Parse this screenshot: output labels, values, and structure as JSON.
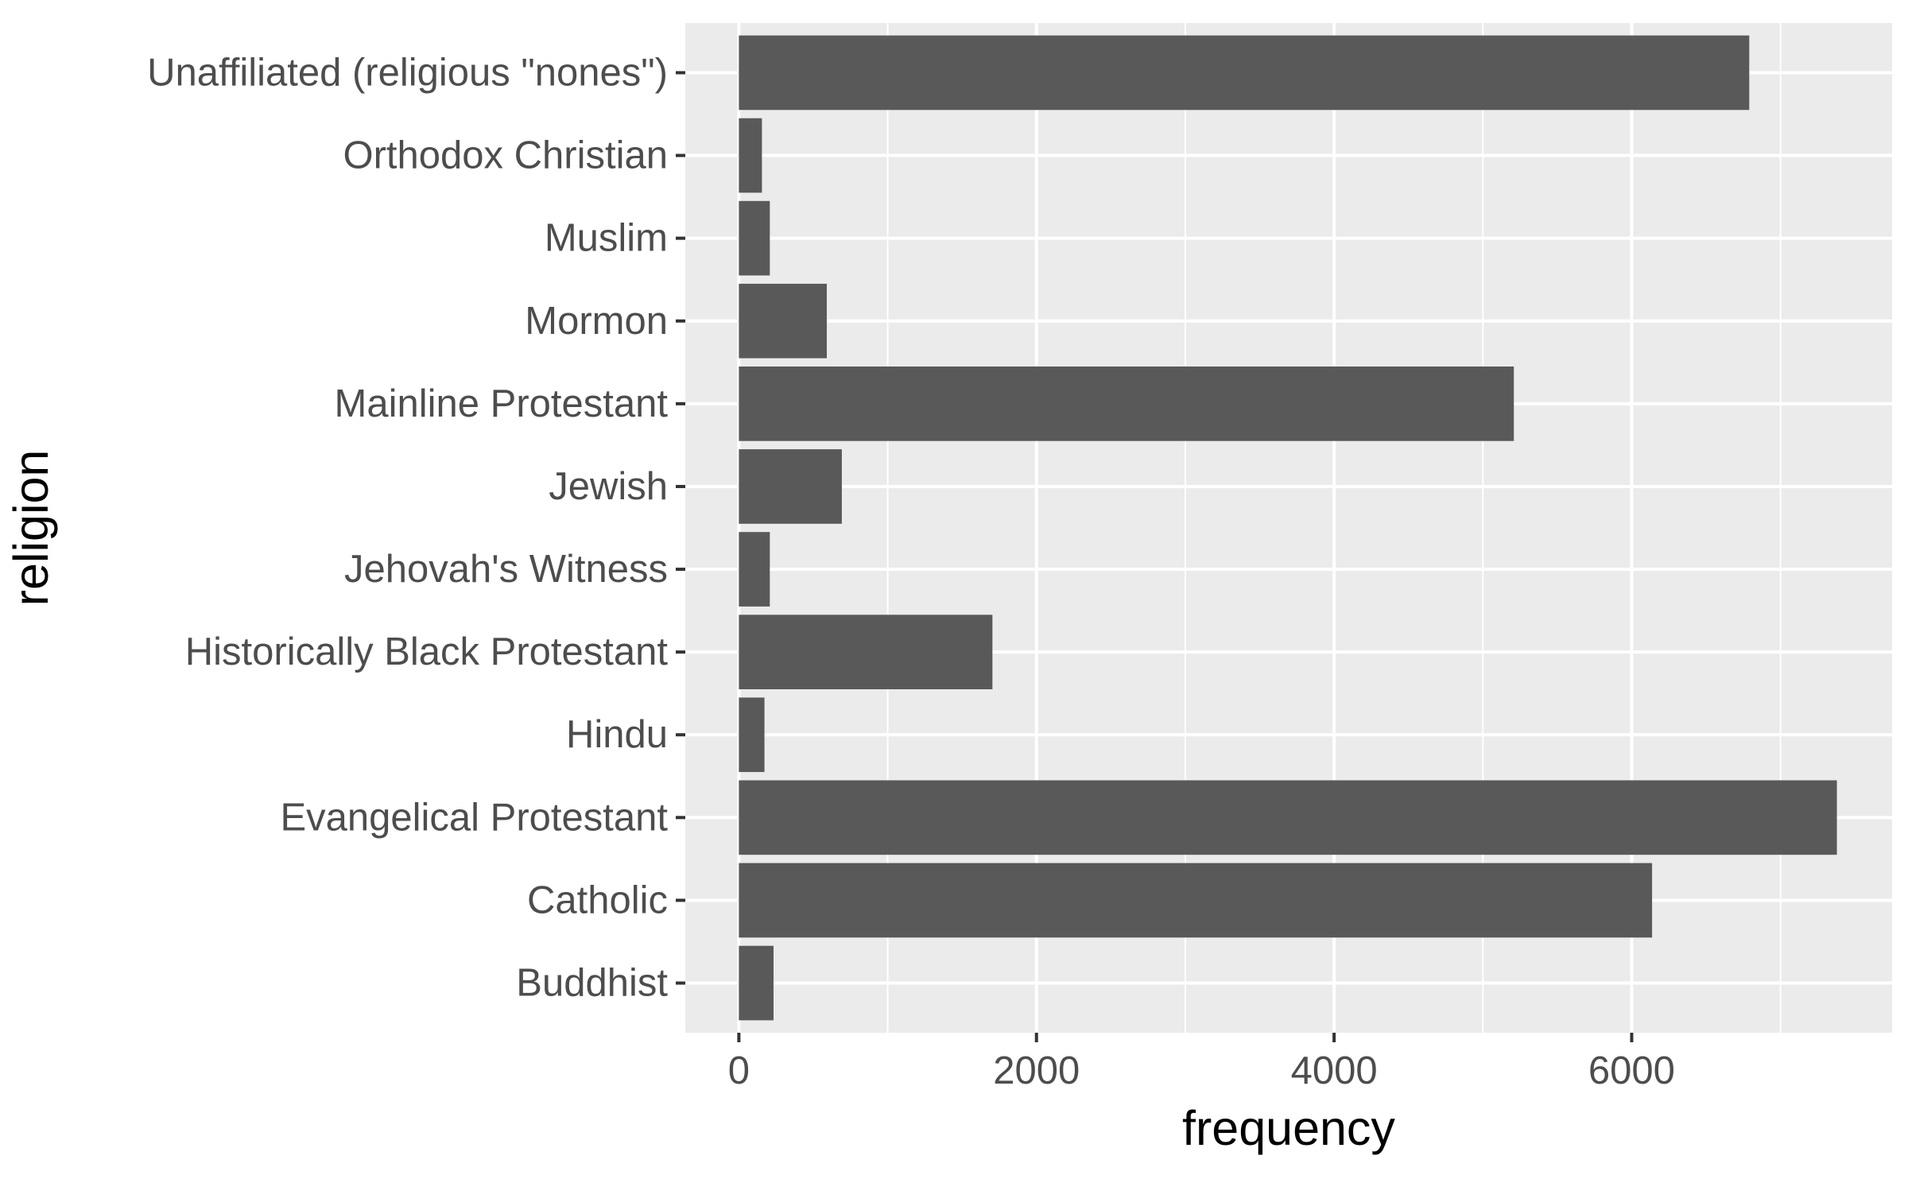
{
  "chart_data": {
    "type": "bar",
    "orientation": "horizontal",
    "categories": [
      "Buddhist",
      "Catholic",
      "Evangelical Protestant",
      "Hindu",
      "Historically Black Protestant",
      "Jehovah's Witness",
      "Jewish",
      "Mainline Protestant",
      "Mormon",
      "Muslim",
      "Orthodox Christian",
      "Unaffiliated (religious \"nones\")"
    ],
    "values": [
      233,
      6137,
      7379,
      172,
      1704,
      208,
      692,
      5208,
      591,
      208,
      155,
      6790
    ],
    "xlabel": "frequency",
    "ylabel": "religion",
    "xlim": [
      -360,
      7750
    ],
    "x_ticks": [
      0,
      2000,
      4000,
      6000
    ],
    "x_tick_labels": [
      "0",
      "2000",
      "4000",
      "6000"
    ],
    "x_minor_ticks": [
      1000,
      3000,
      5000,
      7000
    ],
    "grid": true,
    "legend": "none",
    "colors": {
      "bar": "#595959",
      "panel": "#ebebeb",
      "grid": "#ffffff",
      "tick_text": "#4d4d4d",
      "tick_mark": "#333333",
      "axis_title": "#000000"
    }
  }
}
